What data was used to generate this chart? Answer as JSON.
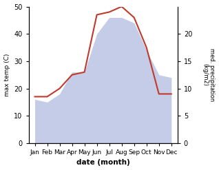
{
  "months": [
    "Jan",
    "Feb",
    "Mar",
    "Apr",
    "May",
    "Jun",
    "Jul",
    "Aug",
    "Sep",
    "Oct",
    "Nov",
    "Dec"
  ],
  "temperature": [
    17,
    17,
    20,
    25,
    26,
    47,
    48,
    50,
    46,
    35,
    18,
    18
  ],
  "precipitation": [
    8,
    7.5,
    9,
    13,
    13,
    20,
    23,
    23,
    22,
    17,
    12.5,
    12
  ],
  "temp_color": "#c0392b",
  "precip_fill_color": "#c5cce8",
  "background_color": "#ffffff",
  "xlabel": "date (month)",
  "ylabel_left": "max temp (C)",
  "ylabel_right": "med. precipitation\n(kg/m2)",
  "ylim_left": [
    0,
    50
  ],
  "ylim_right": [
    0,
    25
  ],
  "yticks_left": [
    0,
    10,
    20,
    30,
    40,
    50
  ],
  "yticks_right": [
    0,
    5,
    10,
    15,
    20
  ],
  "precip_scale_factor": 2.0
}
